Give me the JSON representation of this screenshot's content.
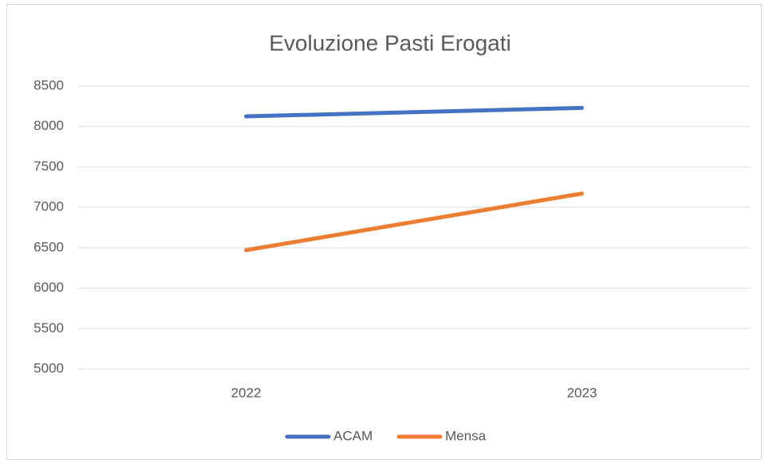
{
  "chart_data": {
    "type": "line",
    "title": "Evoluzione Pasti Erogati",
    "categories": [
      "2022",
      "2023"
    ],
    "series": [
      {
        "name": "ACAM",
        "color": "#4472c4",
        "values": [
          8125,
          8230
        ]
      },
      {
        "name": "Mensa",
        "color": "#ed7d31",
        "values": [
          6470,
          7170
        ]
      }
    ],
    "ylim": [
      5000,
      8500
    ],
    "yticks": [
      5000,
      5500,
      6000,
      6500,
      7000,
      7500,
      8000,
      8500
    ],
    "grid": true,
    "legend": "bottom"
  }
}
